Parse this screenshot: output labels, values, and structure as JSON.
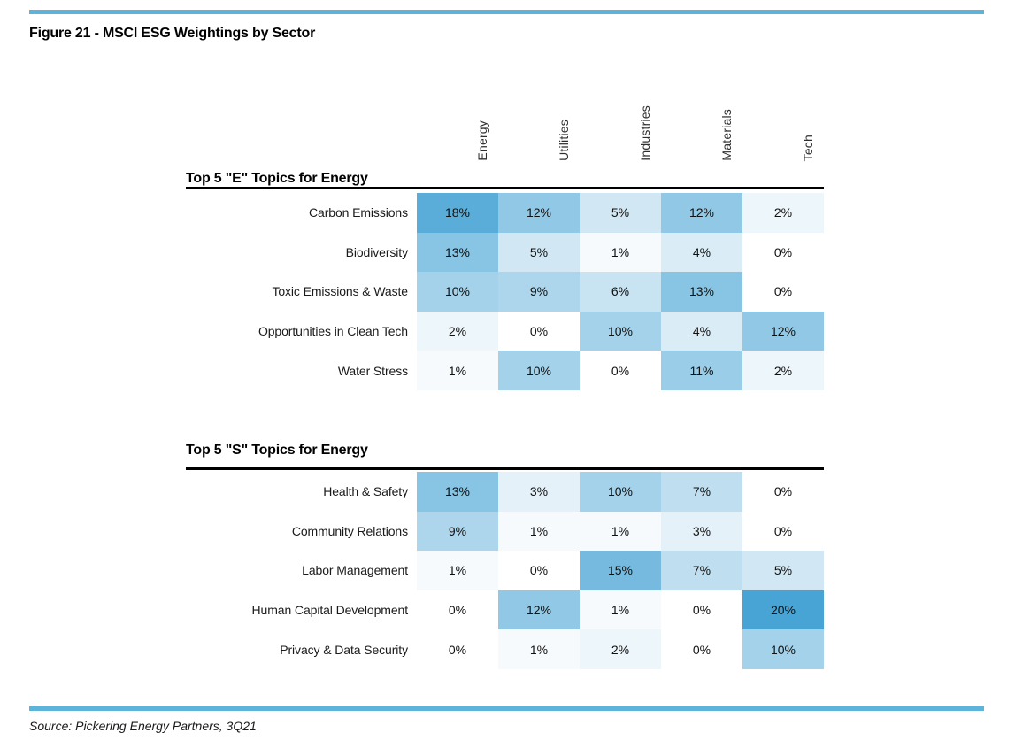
{
  "figure": {
    "title": "Figure 21 - MSCI ESG Weightings by Sector",
    "source": "Source: Pickering Energy Partners, 3Q21"
  },
  "colors": {
    "accent_rule": "#5CB4DB",
    "section_rule": "#000000",
    "heat_min": "#FFFFFF",
    "heat_max": "#48A4D4",
    "text": "#1A1A1A"
  },
  "chart_data": {
    "type": "heatmap",
    "title": "MSCI ESG Weightings by Sector",
    "columns": [
      "Energy",
      "Utilities",
      "Industries",
      "Materials",
      "Tech"
    ],
    "unit": "%",
    "scale": {
      "min": 0,
      "max": 20,
      "min_color": "#FFFFFF",
      "max_color": "#48A4D4"
    },
    "tables": [
      {
        "title": "Top 5 \"E\" Topics for Energy",
        "rows": [
          {
            "label": "Carbon Emissions",
            "values": [
              18,
              12,
              5,
              12,
              2
            ]
          },
          {
            "label": "Biodiversity",
            "values": [
              13,
              5,
              1,
              4,
              0
            ]
          },
          {
            "label": "Toxic Emissions & Waste",
            "values": [
              10,
              9,
              6,
              13,
              0
            ]
          },
          {
            "label": "Opportunities in Clean Tech",
            "values": [
              2,
              0,
              10,
              4,
              12
            ]
          },
          {
            "label": "Water Stress",
            "values": [
              1,
              10,
              0,
              11,
              2
            ]
          }
        ]
      },
      {
        "title": "Top 5 \"S\" Topics for Energy",
        "rows": [
          {
            "label": "Health & Safety",
            "values": [
              13,
              3,
              10,
              7,
              0
            ]
          },
          {
            "label": "Community Relations",
            "values": [
              9,
              1,
              1,
              3,
              0
            ]
          },
          {
            "label": "Labor Management",
            "values": [
              1,
              0,
              15,
              7,
              5
            ]
          },
          {
            "label": "Human Capital Development",
            "values": [
              0,
              12,
              1,
              0,
              20
            ]
          },
          {
            "label": "Privacy & Data Security",
            "values": [
              0,
              1,
              2,
              0,
              10
            ]
          }
        ]
      }
    ]
  }
}
